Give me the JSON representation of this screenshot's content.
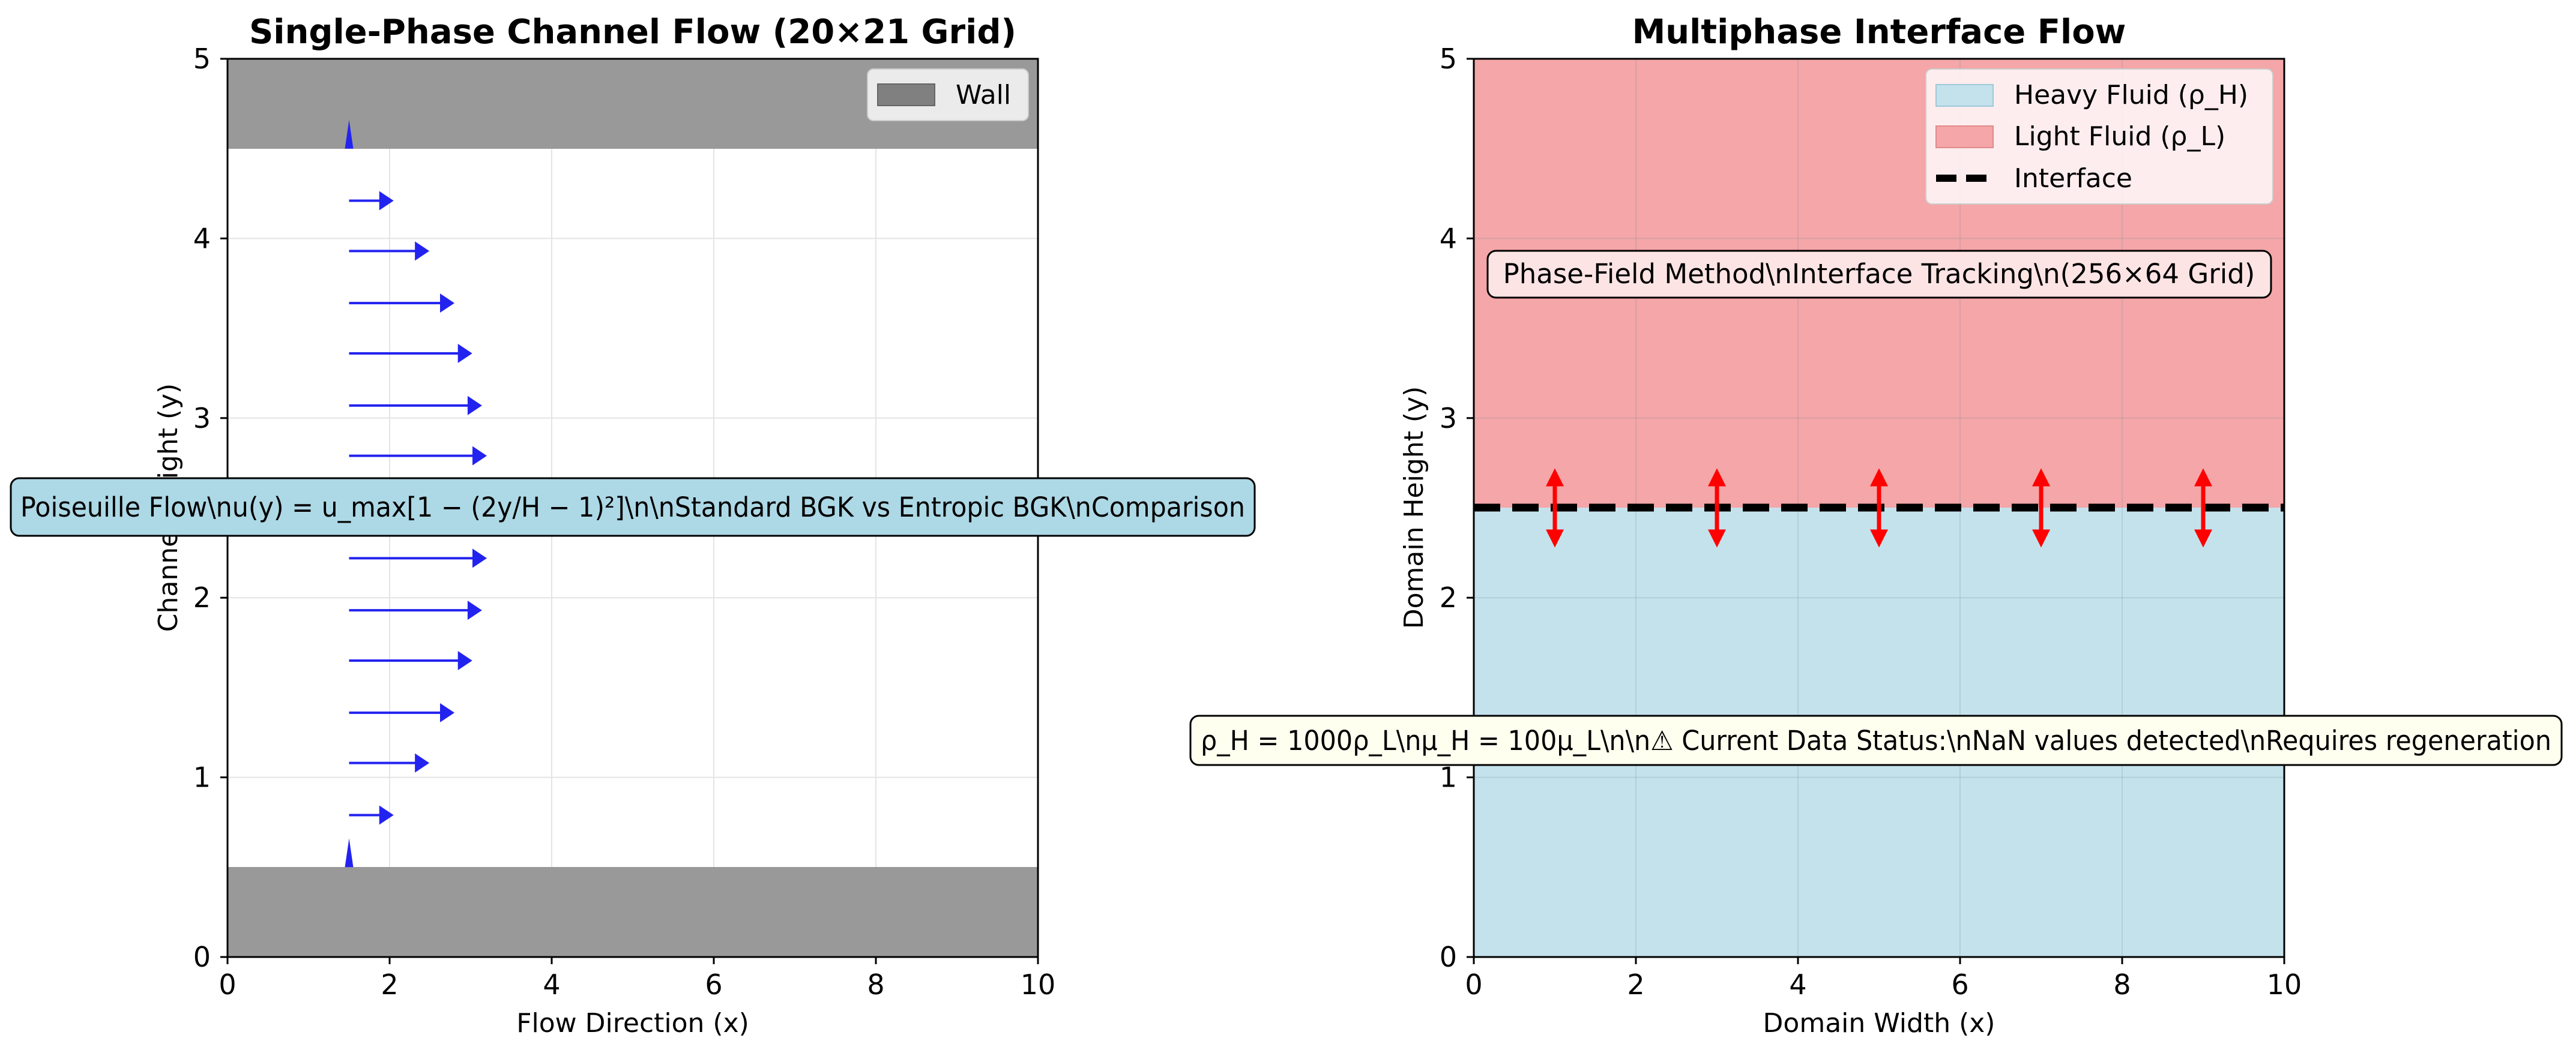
{
  "chart_data": [
    {
      "type": "quiver",
      "title": "Single-Phase Channel Flow (20×21 Grid)",
      "xlabel": "Flow Direction (x)",
      "ylabel": "Channel Height (y)",
      "xlim": [
        0,
        10
      ],
      "ylim": [
        0,
        5
      ],
      "xticks": [
        "0",
        "2",
        "4",
        "6",
        "8",
        "10"
      ],
      "yticks": [
        "0",
        "1",
        "2",
        "3",
        "4",
        "5"
      ],
      "grid": true,
      "legend": {
        "placement": "top-right",
        "entries": [
          {
            "label": "Wall",
            "color": "#808080"
          }
        ]
      },
      "walls": [
        {
          "y0": 0,
          "y1": 0.5
        },
        {
          "y0": 4.5,
          "y1": 5
        }
      ],
      "series": [
        {
          "color": "#2323f0",
          "x0": 1.5,
          "y": [
            0.5,
            0.79,
            1.08,
            1.36,
            1.65,
            1.93,
            2.22,
            2.5,
            2.79,
            3.07,
            3.36,
            3.64,
            3.93,
            4.21,
            4.5
          ],
          "u": [
            0.0,
            0.55,
            0.99,
            1.3,
            1.52,
            1.64,
            1.7,
            1.72,
            1.7,
            1.64,
            1.52,
            1.3,
            0.99,
            0.55,
            0.0
          ]
        }
      ],
      "annotation": "Poiseuille Flow\\nu(y) = u_max[1 − (2y/H − 1)²]\\n\\nStandard BGK vs Entropic BGK\\nComparison",
      "colors": {
        "wall": "#999999",
        "arrow": "#2323f0",
        "annotation_bg": "#add8e6"
      }
    },
    {
      "type": "area",
      "title": "Multiphase Interface Flow",
      "xlabel": "Domain Width (x)",
      "ylabel": "Domain Height (y)",
      "xlim": [
        0,
        10
      ],
      "ylim": [
        0,
        5
      ],
      "xticks": [
        "0",
        "2",
        "4",
        "6",
        "8",
        "10"
      ],
      "yticks": [
        "0",
        "1",
        "2",
        "3",
        "4",
        "5"
      ],
      "grid": true,
      "regions": [
        {
          "name": "Heavy Fluid (ρ_H)",
          "y0": 0,
          "y1": 2.5,
          "color": "#c4e2ec"
        },
        {
          "name": "Light Fluid (ρ_L)",
          "y0": 2.5,
          "y1": 5,
          "color": "#f4a6a8"
        }
      ],
      "interface_y": 2.5,
      "legend": {
        "placement": "top-right",
        "entries": [
          {
            "label": "Heavy Fluid (ρ_H)",
            "kind": "patch",
            "color": "#c4e2ec"
          },
          {
            "label": "Light Fluid (ρ_L)",
            "kind": "patch",
            "color": "#f4a6a8"
          },
          {
            "label": "Interface",
            "kind": "dashed",
            "color": "#000000"
          }
        ]
      },
      "double_arrows_x": [
        1,
        3,
        5,
        7,
        9
      ],
      "annotation_top": "Phase-Field Method\\nInterface Tracking\\n(256×64 Grid)",
      "annotation_bottom": "ρ_H = 1000ρ_L\\nμ_H = 100μ_L\\n\\n⚠ Current Data Status:\\nNaN values detected\\nRequires regeneration",
      "colors": {
        "arrow": "#ff0000",
        "annotation_top_bg": "#fde4e4",
        "annotation_bottom_bg": "#fffff0"
      }
    }
  ]
}
